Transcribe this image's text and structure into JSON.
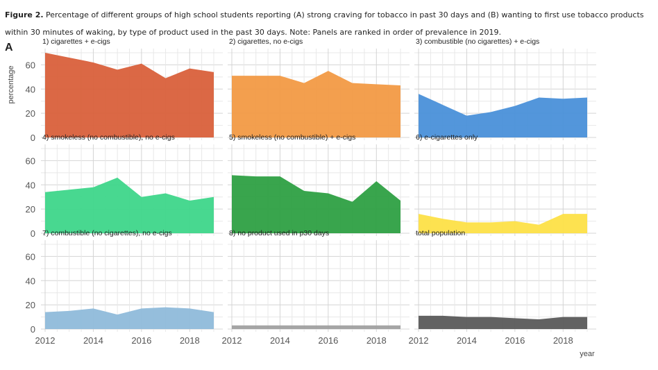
{
  "caption": {
    "label": "Figure 2.",
    "text": " Percentage of different groups of high school students reporting (A) strong craving for tobacco in past 30 days and (B) wanting to first use tobacco products within 30 minutes of waking, by type of product used in the past 30 days. Note: Panels are ranked in order of prevalence in 2019."
  },
  "panel_letter": "A",
  "chart_data": {
    "type": "area",
    "layout": "facet-grid-3x3",
    "ylabel": "percentage",
    "xlabel": "year",
    "xlim": [
      2012,
      2019
    ],
    "ylim": [
      0,
      70
    ],
    "x_ticks": [
      2012,
      2014,
      2016,
      2018
    ],
    "y_ticks": [
      0,
      20,
      40,
      60
    ],
    "x": [
      2012,
      2013,
      2014,
      2015,
      2016,
      2017,
      2018,
      2019
    ],
    "grid": true,
    "panels": [
      {
        "title": "1) cigarettes + e-cigs",
        "color": "#D9603B",
        "values": [
          70,
          66,
          62,
          56,
          61,
          49,
          57,
          54
        ]
      },
      {
        "title": "2) cigarettes, no e-cigs",
        "color": "#F29A44",
        "values": [
          51,
          51,
          51,
          45,
          55,
          45,
          44,
          43
        ]
      },
      {
        "title": "3) combustible (no cigarettes) + e-cigs",
        "color": "#4A90D9",
        "values": [
          36,
          27,
          18,
          21,
          26,
          33,
          32,
          33
        ]
      },
      {
        "title": "4) smokeless (no combustible), no e-cigs",
        "color": "#3ED68A",
        "values": [
          34,
          36,
          38,
          46,
          30,
          33,
          27,
          30
        ]
      },
      {
        "title": "5) smokeless (no combustible) + e-cigs",
        "color": "#2EA043",
        "values": [
          48,
          47,
          47,
          35,
          33,
          26,
          43,
          27
        ]
      },
      {
        "title": "6) e-cigarettes only",
        "color": "#FDE047",
        "values": [
          16,
          12,
          9,
          9,
          10,
          7,
          16,
          16
        ]
      },
      {
        "title": "7) combustible (no cigarettes), no e-cigs",
        "color": "#8FBBDA",
        "values": [
          14,
          15,
          17,
          12,
          17,
          18,
          17,
          14
        ]
      },
      {
        "title": "8) no product used in p30 days",
        "color": "#A0A0A0",
        "values": [
          3,
          3,
          3,
          3,
          3,
          3,
          3,
          3
        ]
      },
      {
        "title": "total population",
        "color": "#5A5A5A",
        "values": [
          11,
          11,
          10,
          10,
          9,
          8,
          10,
          10
        ]
      }
    ]
  }
}
